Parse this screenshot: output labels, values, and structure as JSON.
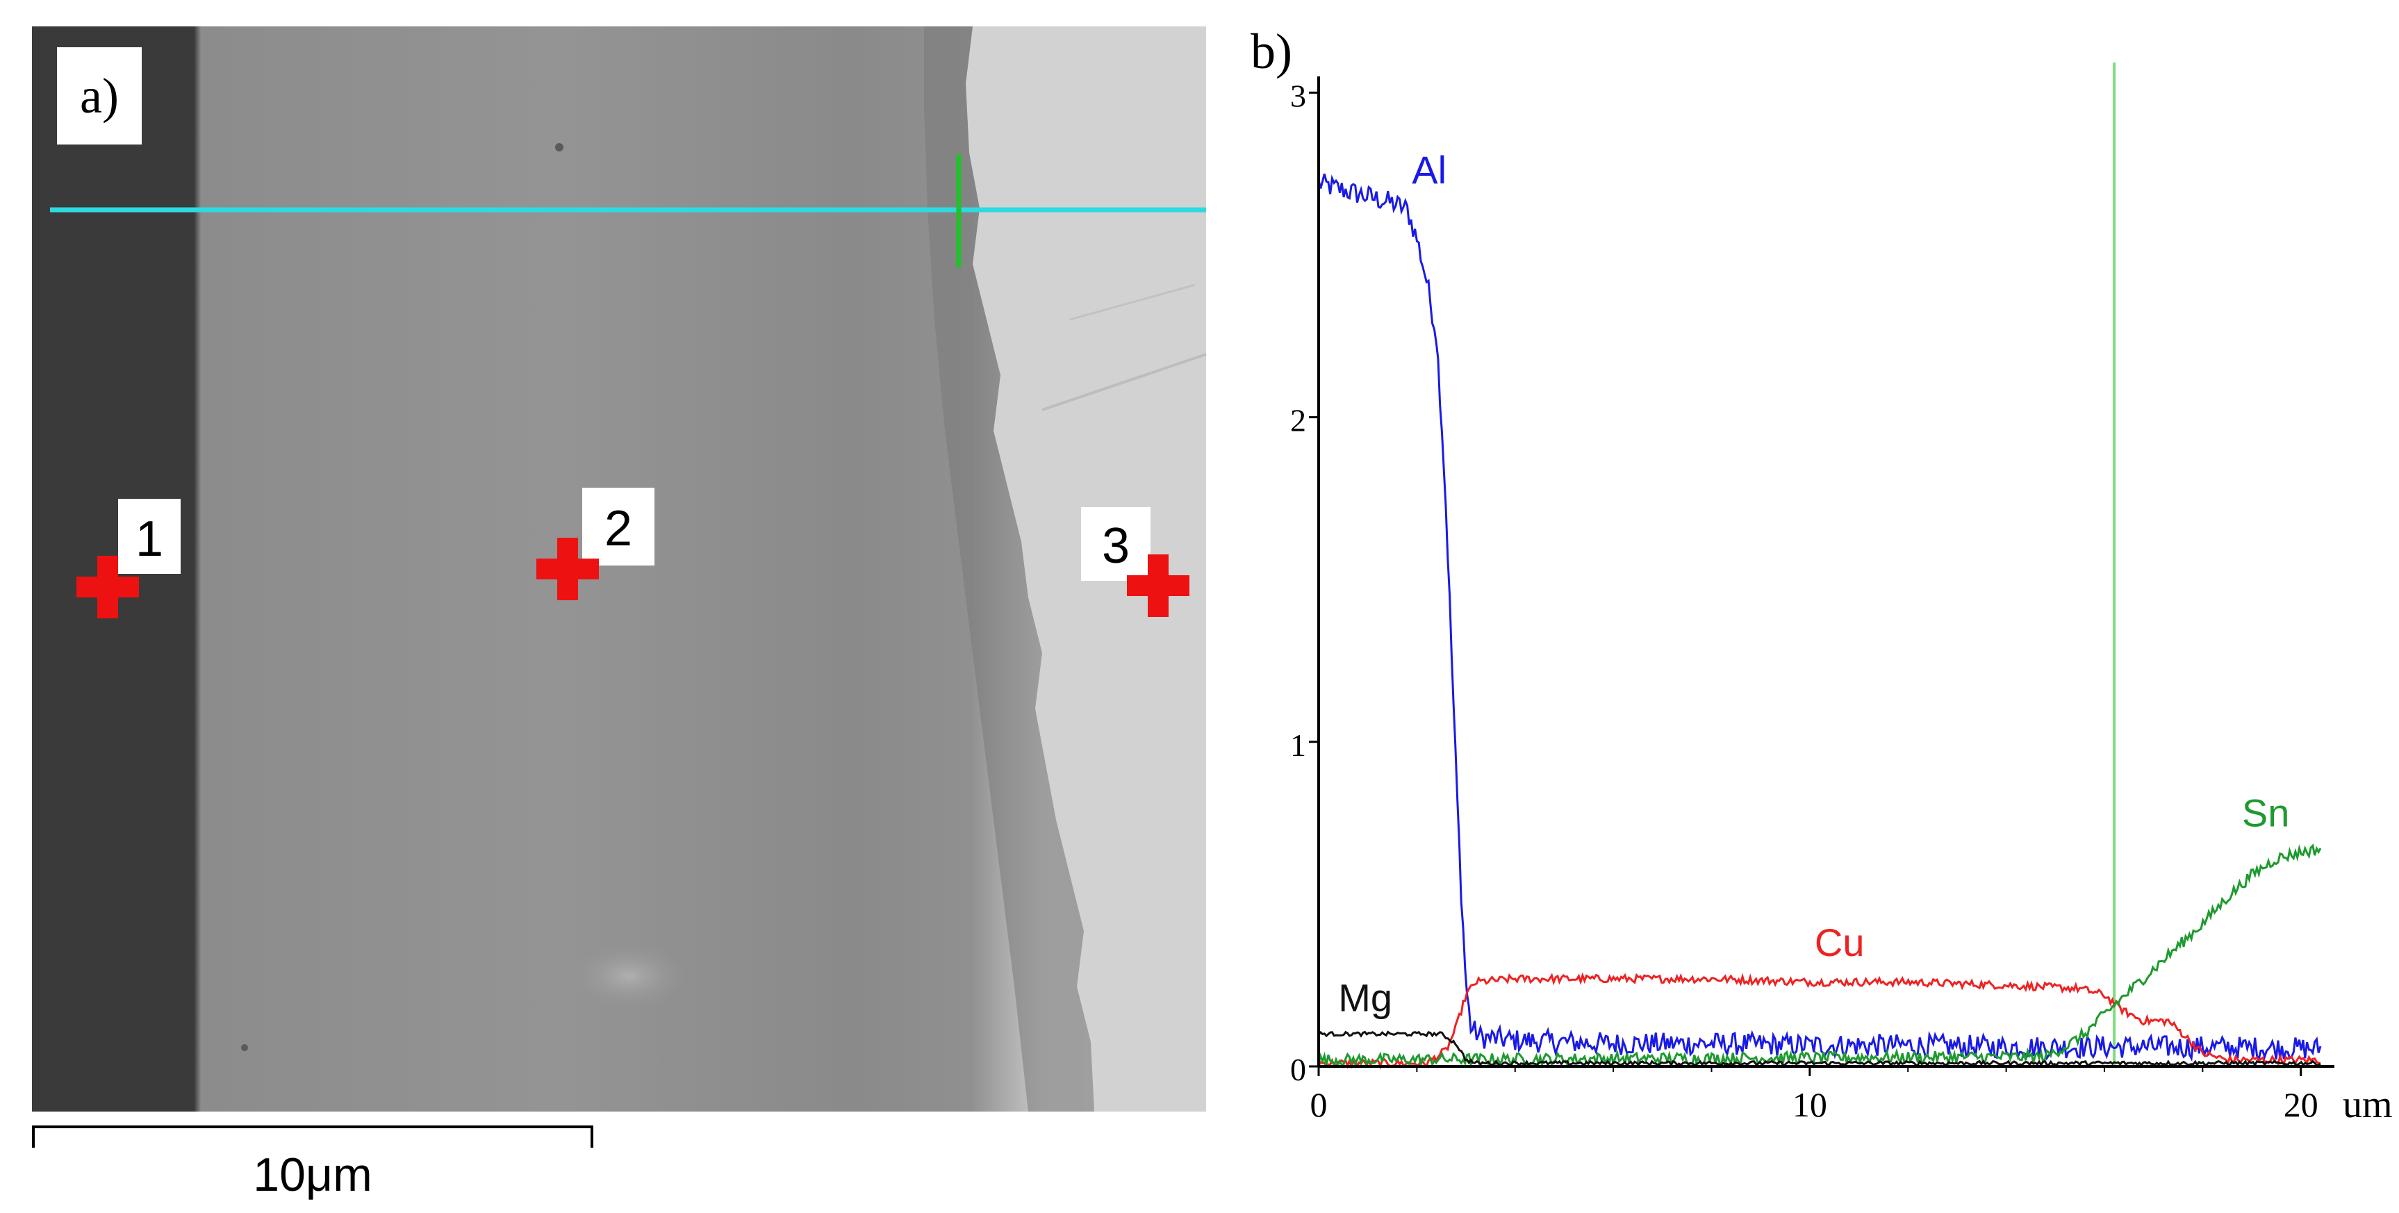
{
  "sem": {
    "panel_label": "a)",
    "scale_bar": "10μm",
    "points": [
      {
        "label": "1"
      },
      {
        "label": "2"
      },
      {
        "label": "3"
      }
    ],
    "colors": {
      "line_scan": "#2fd9e0",
      "cursor": "#22c02a",
      "marker": "#ee1111"
    }
  },
  "chart_data": {
    "type": "line",
    "panel_label": "b)",
    "xlabel": "um",
    "xlim": [
      0,
      20.4
    ],
    "ylim": [
      0,
      3.05
    ],
    "x_ticks": [
      "0",
      "10",
      "20"
    ],
    "y_ticks": [
      "0",
      "1",
      "2",
      "3"
    ],
    "cursor_x": 16.2,
    "series": [
      {
        "name": "Al",
        "color": "#1a1ae6",
        "points": [
          [
            0,
            2.72
          ],
          [
            0.5,
            2.7
          ],
          [
            1,
            2.68
          ],
          [
            1.5,
            2.66
          ],
          [
            1.8,
            2.64
          ],
          [
            2.0,
            2.55
          ],
          [
            2.2,
            2.42
          ],
          [
            2.4,
            2.25
          ],
          [
            2.5,
            2.0
          ],
          [
            2.6,
            1.7
          ],
          [
            2.7,
            1.3
          ],
          [
            2.8,
            0.9
          ],
          [
            2.9,
            0.55
          ],
          [
            3.0,
            0.25
          ],
          [
            3.1,
            0.12
          ],
          [
            3.3,
            0.09
          ],
          [
            4,
            0.08
          ],
          [
            6,
            0.07
          ],
          [
            8,
            0.07
          ],
          [
            10,
            0.065
          ],
          [
            12,
            0.065
          ],
          [
            14,
            0.06
          ],
          [
            16,
            0.06
          ],
          [
            18,
            0.06
          ],
          [
            20,
            0.055
          ],
          [
            20.4,
            0.055
          ]
        ],
        "noise": 0.035
      },
      {
        "name": "Cu",
        "color": "#ee2222",
        "points": [
          [
            0,
            0.01
          ],
          [
            2.2,
            0.01
          ],
          [
            2.6,
            0.05
          ],
          [
            2.8,
            0.12
          ],
          [
            3.0,
            0.22
          ],
          [
            3.2,
            0.26
          ],
          [
            4,
            0.27
          ],
          [
            6,
            0.27
          ],
          [
            8,
            0.27
          ],
          [
            10,
            0.26
          ],
          [
            12,
            0.26
          ],
          [
            14,
            0.25
          ],
          [
            15.5,
            0.24
          ],
          [
            16,
            0.22
          ],
          [
            16.4,
            0.17
          ],
          [
            16.8,
            0.14
          ],
          [
            17.3,
            0.14
          ],
          [
            17.6,
            0.1
          ],
          [
            18,
            0.04
          ],
          [
            18.5,
            0.02
          ],
          [
            20.4,
            0.02
          ]
        ],
        "noise": 0.012
      },
      {
        "name": "Sn",
        "color": "#1e9a2e",
        "points": [
          [
            0,
            0.02
          ],
          [
            14.8,
            0.03
          ],
          [
            15.2,
            0.06
          ],
          [
            15.6,
            0.1
          ],
          [
            16.0,
            0.16
          ],
          [
            16.5,
            0.23
          ],
          [
            17,
            0.3
          ],
          [
            17.5,
            0.37
          ],
          [
            18,
            0.44
          ],
          [
            18.5,
            0.52
          ],
          [
            19,
            0.59
          ],
          [
            19.5,
            0.64
          ],
          [
            20,
            0.66
          ],
          [
            20.4,
            0.67
          ]
        ],
        "noise": 0.018
      },
      {
        "name": "Mg",
        "color": "#111111",
        "points": [
          [
            0,
            0.1
          ],
          [
            1,
            0.1
          ],
          [
            2,
            0.1
          ],
          [
            2.5,
            0.1
          ],
          [
            2.8,
            0.07
          ],
          [
            3.0,
            0.02
          ],
          [
            3.2,
            0.01
          ],
          [
            20.4,
            0.01
          ]
        ],
        "noise": 0.006
      }
    ]
  }
}
